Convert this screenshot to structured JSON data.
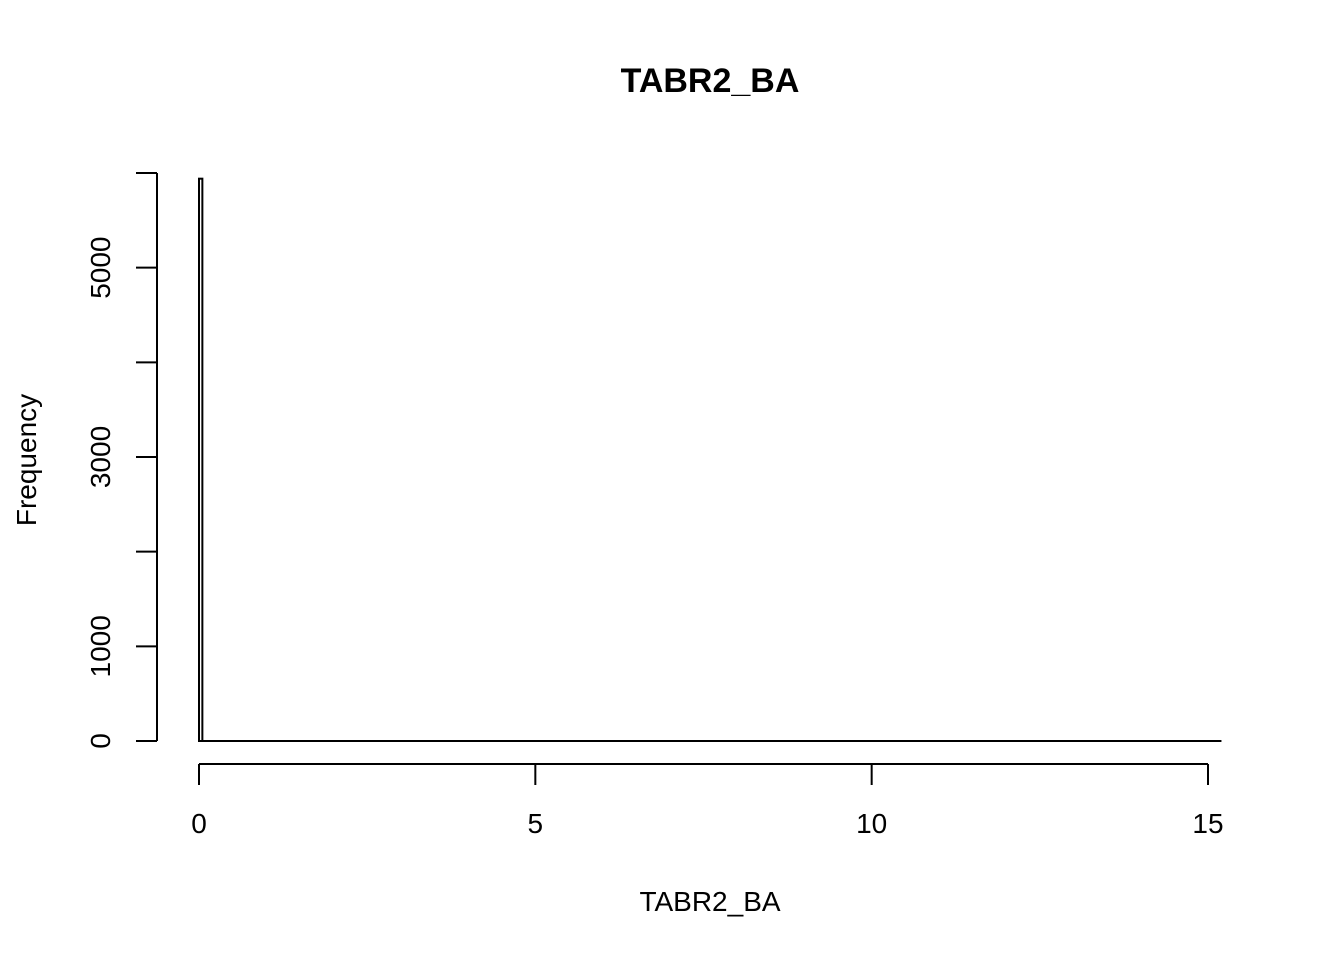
{
  "chart_data": {
    "type": "bar",
    "title": "TABR2_BA",
    "xlabel": "TABR2_BA",
    "ylabel": "Frequency",
    "xlim": [
      0,
      15
    ],
    "ylim": [
      0,
      6000
    ],
    "x_ticks": [
      0,
      5,
      10,
      15
    ],
    "x_tick_labels": [
      "0",
      "5",
      "10",
      "15"
    ],
    "y_ticks": [
      0,
      1000,
      2000,
      3000,
      4000,
      5000,
      6000
    ],
    "y_tick_labels": [
      "0",
      "1000",
      "",
      "3000",
      "",
      "5000",
      ""
    ],
    "bins": [
      {
        "start": 0,
        "end": 0.05,
        "count": 5940
      }
    ],
    "bin_width": 0.05,
    "x_max": 15.2,
    "grid": false,
    "legend": "none",
    "bar_fill": "#ffffff",
    "bar_stroke": "#000000"
  }
}
